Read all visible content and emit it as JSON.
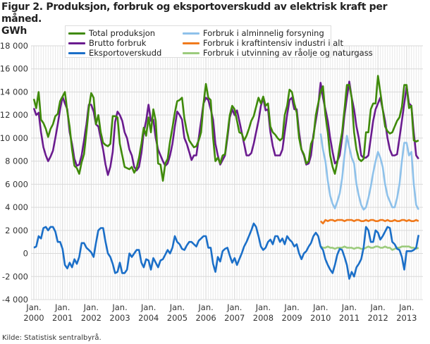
{
  "title": "Figur 2. Produksjon, forbruk og eksportoverskudd av elektrisk kraft per måned.",
  "unit": "GWh",
  "source": "Kilde: Statistisk sentralbyrå.",
  "chart_data": {
    "type": "line",
    "title": "Figur 2. Produksjon, forbruk og eksportoverskudd av elektrisk kraft per måned.",
    "ylabel": "GWh",
    "ylim": [
      -4000,
      18000
    ],
    "yticks": [
      18000,
      16000,
      14000,
      12000,
      10000,
      8000,
      6000,
      4000,
      2000,
      0,
      -2000,
      -4000
    ],
    "ytick_labels": [
      "18 000",
      "16 000",
      "14 000",
      "12 000",
      "10 000",
      "8 000",
      "6 000",
      "4 000",
      "2 000",
      "0",
      "-2 000",
      "-4 000"
    ],
    "xticks": [
      {
        "month": "Jan.",
        "year": "2000"
      },
      {
        "month": "Jan.",
        "year": "2001"
      },
      {
        "month": "Jan.",
        "year": "2002"
      },
      {
        "month": "Jan.",
        "year": "2003"
      },
      {
        "month": "Jan.",
        "year": "2004"
      },
      {
        "month": "Jan.",
        "year": "2005"
      },
      {
        "month": "Jan.",
        "year": "2006"
      },
      {
        "month": "Jan.",
        "year": "2007"
      },
      {
        "month": "Jan.",
        "year": "2008"
      },
      {
        "month": "Jan.",
        "year": "2009"
      },
      {
        "month": "Jan.",
        "year": "2010"
      },
      {
        "month": "Jan.",
        "year": "2011"
      },
      {
        "month": "Jan.",
        "year": "2012"
      },
      {
        "month": "Jan.",
        "year": "2013"
      }
    ],
    "x_start": "2000-01",
    "x_end": "2013-06",
    "x_frequency": "monthly",
    "grid": true,
    "legend_position": "top",
    "series": [
      {
        "name": "Total produksjon",
        "color": "#3f8a0a",
        "start": "2000-01",
        "values": [
          13400,
          12600,
          14000,
          11600,
          11300,
          10800,
          10100,
          10800,
          11200,
          11900,
          12100,
          13200,
          13600,
          14000,
          12300,
          11000,
          9000,
          7600,
          7400,
          6900,
          7900,
          8600,
          10500,
          12600,
          13900,
          13500,
          11200,
          12000,
          10500,
          9600,
          9400,
          9300,
          9500,
          11900,
          11900,
          11800,
          9500,
          8500,
          7500,
          7400,
          7300,
          7500,
          7000,
          7400,
          8300,
          9500,
          10900,
          10200,
          11800,
          10500,
          12500,
          11500,
          7800,
          7700,
          6300,
          7800,
          8200,
          9700,
          10900,
          12200,
          13200,
          13300,
          13500,
          11700,
          10600,
          9800,
          9500,
          9200,
          9300,
          9800,
          10500,
          13000,
          14700,
          13500,
          13300,
          10000,
          8000,
          8300,
          7800,
          8500,
          8600,
          10300,
          12000,
          12800,
          12500,
          11500,
          10500,
          10400,
          9800,
          10200,
          10800,
          11500,
          11900,
          12700,
          13500,
          13000,
          13600,
          12800,
          13000,
          11000,
          10500,
          10300,
          10000,
          9800,
          10000,
          12000,
          12800,
          14200,
          14000,
          13000,
          12200,
          10000,
          9000,
          8600,
          7800,
          8000,
          9500,
          10000,
          12000,
          13000,
          14000,
          14500,
          12000,
          10500,
          8500,
          7500,
          6900,
          7900,
          9300,
          10500,
          12500,
          14600,
          14600,
          13500,
          10500,
          9000,
          8200,
          8000,
          8200,
          10500,
          10500,
          12500,
          13000,
          13000,
          15400,
          14000,
          12500,
          11000,
          10600,
          10400,
          10500,
          11000,
          11500,
          11800,
          12700,
          14600,
          14600,
          12600,
          12800,
          9800,
          9700,
          9800
        ]
      },
      {
        "name": "Brutto forbruk",
        "color": "#6a1b8f",
        "start": "2000-01",
        "values": [
          12600,
          12000,
          12200,
          10500,
          9200,
          8500,
          8000,
          8400,
          8900,
          10000,
          11200,
          12500,
          13600,
          13000,
          12500,
          10500,
          9500,
          8200,
          7600,
          7700,
          8500,
          9800,
          11200,
          12900,
          12900,
          12300,
          11200,
          11000,
          10000,
          9000,
          7700,
          6800,
          7500,
          8800,
          11400,
          12300,
          12000,
          11500,
          10500,
          10000,
          9000,
          8500,
          7500,
          7200,
          7500,
          8700,
          10500,
          11500,
          12900,
          11500,
          11600,
          10000,
          9000,
          8500,
          8000,
          7600,
          7800,
          8500,
          9500,
          11000,
          12300,
          12000,
          11600,
          10000,
          9500,
          8800,
          8100,
          8500,
          8500,
          10000,
          11500,
          13000,
          13500,
          13300,
          12500,
          11600,
          9500,
          8500,
          7700,
          8100,
          8500,
          10000,
          11800,
          12500,
          12000,
          12400,
          11500,
          10500,
          9500,
          8500,
          8500,
          8700,
          9500,
          10500,
          11500,
          12800,
          13500,
          12400,
          12500,
          10500,
          9300,
          8500,
          8500,
          8500,
          9000,
          10500,
          12000,
          13300,
          13500,
          12500,
          12500,
          10500,
          9000,
          8500,
          7700,
          7800,
          8500,
          10300,
          11500,
          12800,
          14800,
          13500,
          12500,
          11500,
          10000,
          8800,
          7800,
          8000,
          8500,
          10000,
          12000,
          13500,
          14900,
          13500,
          12500,
          11000,
          10000,
          8500,
          8300,
          8300,
          8500,
          10000,
          11500,
          12500,
          13000,
          13500,
          12500,
          11500,
          10000,
          9000,
          8500,
          8500,
          8600,
          10000,
          11500,
          13000,
          14500,
          13000,
          12800,
          10500,
          8500,
          8200
        ]
      },
      {
        "name": "Eksportoverskudd",
        "color": "#1b6fc8",
        "start": "2000-01",
        "values": [
          500,
          600,
          1500,
          1300,
          2200,
          2300,
          2000,
          2300,
          2300,
          1900,
          1000,
          1000,
          400,
          -1000,
          -1300,
          -800,
          -1200,
          -500,
          -900,
          -300,
          900,
          900,
          500,
          300,
          100,
          -300,
          900,
          2000,
          2200,
          2200,
          1000,
          0,
          -300,
          -900,
          -1700,
          -1600,
          -800,
          -1700,
          -1700,
          -1400,
          0,
          -300,
          0,
          300,
          300,
          -800,
          -1200,
          -500,
          -600,
          -1400,
          -400,
          -800,
          -1200,
          -600,
          -500,
          -100,
          300,
          0,
          500,
          1500,
          1000,
          800,
          400,
          300,
          700,
          1000,
          1000,
          800,
          600,
          1100,
          1300,
          1500,
          1500,
          500,
          500,
          -900,
          -1600,
          -300,
          -700,
          200,
          400,
          500,
          -200,
          -800,
          -400,
          -1000,
          -500,
          0,
          600,
          1000,
          1500,
          2000,
          2600,
          2300,
          1500,
          600,
          300,
          500,
          1000,
          1200,
          800,
          1500,
          1500,
          1000,
          1300,
          800,
          1500,
          1200,
          1000,
          600,
          800,
          0,
          -500,
          0,
          200,
          600,
          900,
          1500,
          1800,
          1500,
          600,
          300,
          -500,
          -1000,
          -1400,
          -1700,
          -1000,
          -100,
          400,
          300,
          -300,
          -1000,
          -2200,
          -1600,
          -2000,
          -1200,
          -900,
          -500,
          500,
          2300,
          2000,
          1000,
          1000,
          2000,
          1800,
          1200,
          1500,
          1900,
          2300,
          2200,
          1000,
          800,
          400,
          300,
          -300,
          -1400,
          200,
          200,
          200,
          300,
          500,
          1600
        ]
      },
      {
        "name": "Forbruk i alminnelig forsyning",
        "color": "#8ec1ea",
        "start": "2010-01",
        "values": [
          10400,
          9000,
          8000,
          6300,
          5000,
          4300,
          3900,
          4500,
          5200,
          6500,
          8500,
          10200,
          9200,
          8300,
          7800,
          6000,
          5000,
          4200,
          3800,
          4000,
          4800,
          5800,
          7000,
          8000,
          8800,
          8300,
          7500,
          6000,
          5000,
          4500,
          4000,
          4000,
          4800,
          6000,
          8000,
          9600,
          9600,
          8500,
          8800,
          6000,
          4200,
          3800
        ]
      },
      {
        "name": "Forbruk i kraftintensiv industri i alt",
        "color": "#f07a1d",
        "start": "2010-01",
        "values": [
          2800,
          2600,
          2900,
          2800,
          2900,
          2900,
          2800,
          2900,
          2900,
          2900,
          2800,
          2900,
          2900,
          2900,
          2800,
          2900,
          2900,
          2800,
          2800,
          2900,
          2800,
          2900,
          2900,
          2800,
          2800,
          2900,
          2900,
          2800,
          2900,
          2800,
          2800,
          2900,
          2800,
          2800,
          2900,
          2900,
          2800,
          2900,
          2800,
          2800,
          2900,
          2800
        ]
      },
      {
        "name": "Forbruk i utvinning av råolje og naturgass",
        "color": "#9ccb7d",
        "start": "2010-01",
        "values": [
          600,
          500,
          500,
          600,
          500,
          500,
          400,
          500,
          500,
          500,
          600,
          500,
          500,
          500,
          400,
          500,
          500,
          400,
          400,
          500,
          600,
          500,
          500,
          600,
          600,
          500,
          500,
          600,
          500,
          500,
          300,
          400,
          500,
          500,
          600,
          600,
          600,
          600,
          500,
          500,
          400,
          500
        ]
      }
    ]
  }
}
